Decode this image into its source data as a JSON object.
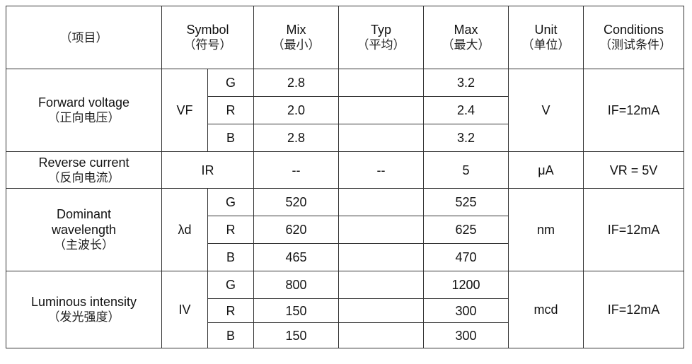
{
  "header": {
    "item": "（项目）",
    "symbol": "Symbol",
    "symbol_cn": "（符号）",
    "min": "Mix",
    "min_cn": "（最小）",
    "typ": "Typ",
    "typ_cn": "（平均）",
    "max": "Max",
    "max_cn": "（最大）",
    "unit": "Unit",
    "unit_cn": "（单位）",
    "conditions": "Conditions",
    "conditions_cn": "（测试条件）"
  },
  "rows": [
    {
      "name": "Forward voltage",
      "name_cn": "（正向电压）",
      "symbol": "VF",
      "unit": "V",
      "condition": "IF=12mA",
      "sub": [
        {
          "color": "G",
          "min": "2.8",
          "typ": "",
          "max": "3.2"
        },
        {
          "color": "R",
          "min": "2.0",
          "typ": "",
          "max": "2.4"
        },
        {
          "color": "B",
          "min": "2.8",
          "typ": "",
          "max": "3.2"
        }
      ]
    },
    {
      "name": "Reverse current",
      "name_cn": "（反向电流）",
      "symbol": "IR",
      "min": "--",
      "typ": "--",
      "max": "5",
      "unit": "μA",
      "condition": "VR = 5V"
    },
    {
      "name": "Dominant wavelength",
      "name_cn": "（主波长）",
      "symbol": "λd",
      "unit": "nm",
      "condition": "IF=12mA",
      "sub": [
        {
          "color": "G",
          "min": "520",
          "typ": "",
          "max": "525"
        },
        {
          "color": "R",
          "min": "620",
          "typ": "",
          "max": "625"
        },
        {
          "color": "B",
          "min": "465",
          "typ": "",
          "max": "470"
        }
      ]
    },
    {
      "name": "Luminous intensity",
      "name_cn": "（发光强度）",
      "symbol": "IV",
      "unit": "mcd",
      "condition": "IF=12mA",
      "sub": [
        {
          "color": "G",
          "min": "800",
          "typ": "",
          "max": "1200"
        },
        {
          "color": "R",
          "min": "150",
          "typ": "",
          "max": "300"
        },
        {
          "color": "B",
          "min": "150",
          "typ": "",
          "max": "300"
        }
      ]
    }
  ]
}
